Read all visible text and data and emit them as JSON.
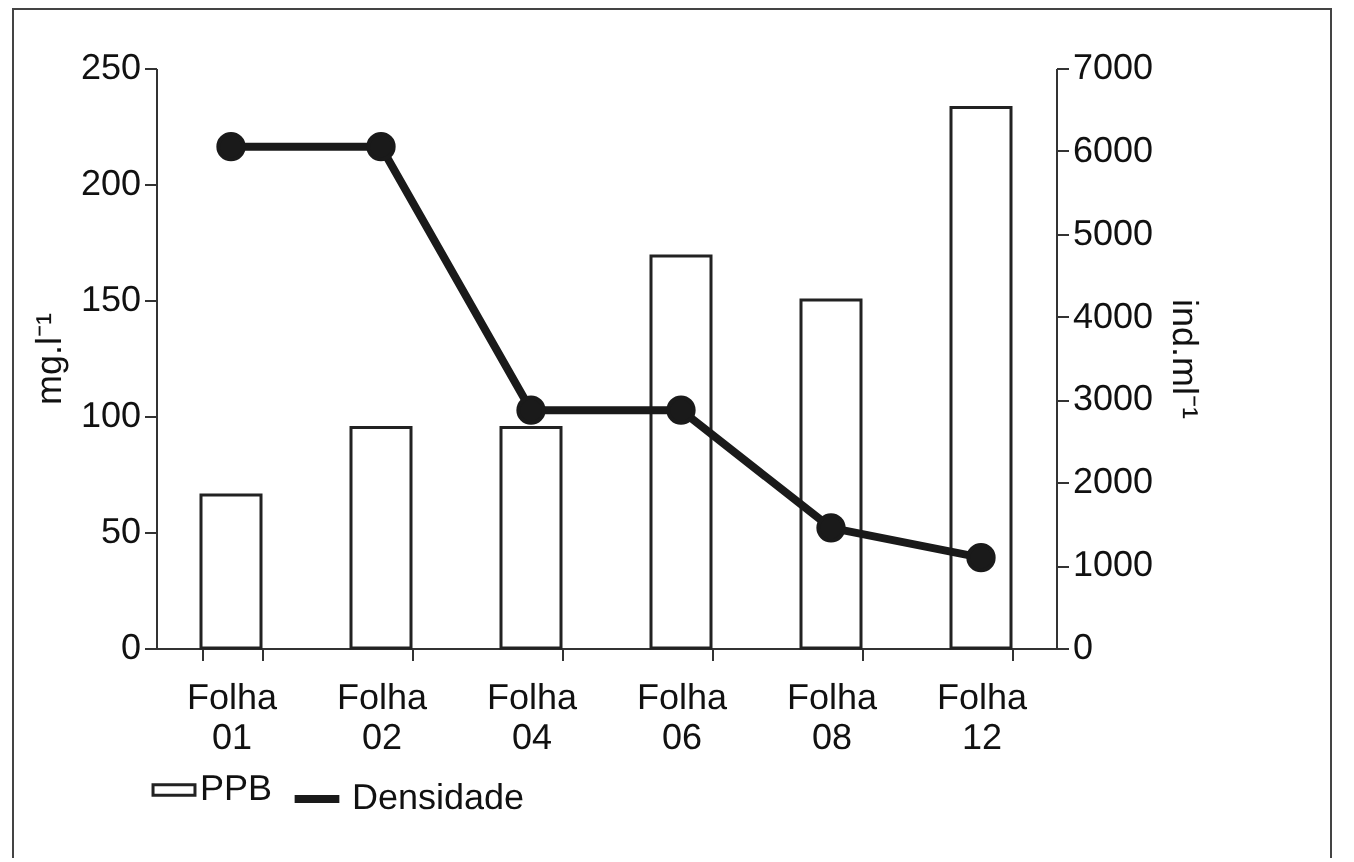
{
  "chart_data": {
    "type": "bar",
    "categories": [
      "Folha 01",
      "Folha 02",
      "Folha 04",
      "Folha 06",
      "Folha 08",
      "Folha 12"
    ],
    "ylabel": "mg.l⁻¹",
    "y2label": "ind.ml⁻¹",
    "series": [
      {
        "name": "PPB",
        "color": "#ffffff",
        "values": [
          66,
          95,
          95,
          169,
          150,
          233
        ]
      },
      {
        "name": "Densidade",
        "type": "line",
        "axis": "y2",
        "color": "#1a1a1a",
        "marker": "circle",
        "values": [
          6050,
          6050,
          2870,
          2870,
          1450,
          1090
        ]
      }
    ],
    "ylim": [
      0,
      250
    ],
    "yticks": [
      0,
      50,
      100,
      150,
      200,
      250
    ],
    "y2lim": [
      0,
      7000
    ],
    "y2ticks": [
      0,
      1000,
      2000,
      3000,
      4000,
      5000,
      6000,
      7000
    ],
    "legend": "bottom",
    "grid": false
  }
}
